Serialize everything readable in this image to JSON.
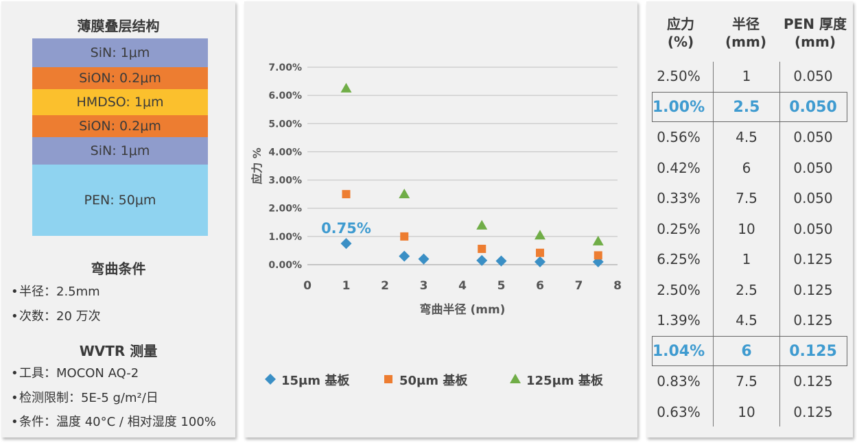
{
  "left": {
    "stack_title": "薄膜叠层结构",
    "layers": [
      {
        "label": "SiN: 1μm",
        "color": "#8f9ccc"
      },
      {
        "label": "SiON: 0.2μm",
        "color": "#ed7d31"
      },
      {
        "label": "HMDSO: 1μm",
        "color": "#fbc02d"
      },
      {
        "label": "SiON: 0.2μm",
        "color": "#ed7d31"
      },
      {
        "label": "SiN: 1μm",
        "color": "#8f9ccc"
      },
      {
        "label": "PEN: 50μm",
        "color": "#8fd3f0"
      }
    ],
    "bend_title": "弯曲条件",
    "bend_items": [
      "半径：2.5mm",
      "次数：20 万次"
    ],
    "wvtr_title": "WVTR 测量",
    "wvtr_items": [
      "工具：MOCON AQ-2",
      "检测限制：5E-5 g/m²/日",
      "条件：温度 40°C / 相对湿度 100%"
    ]
  },
  "chart_data": {
    "type": "scatter",
    "xlabel": "弯曲半径 (mm)",
    "ylabel": "应力 %",
    "xlim": [
      0,
      8
    ],
    "ylim": [
      0,
      7
    ],
    "x_ticks": [
      "0",
      "1",
      "2",
      "3",
      "4",
      "5",
      "6",
      "7",
      "8"
    ],
    "y_ticks": [
      "0.00%",
      "1.00%",
      "2.00%",
      "3.00%",
      "4.00%",
      "5.00%",
      "6.00%",
      "7.00%"
    ],
    "grid": "horizontal",
    "legend_position": "bottom",
    "annotation": {
      "text": "0.75%",
      "x": 1,
      "y": 0.75,
      "color": "#3f9bd0"
    },
    "series": [
      {
        "name": "15μm 基板",
        "marker": "diamond",
        "color": "#3a8fc5",
        "points": [
          [
            1,
            0.75
          ],
          [
            2.5,
            0.3
          ],
          [
            3,
            0.2
          ],
          [
            4.5,
            0.15
          ],
          [
            5,
            0.13
          ],
          [
            6,
            0.1
          ],
          [
            7.5,
            0.1
          ]
        ]
      },
      {
        "name": "50μm 基板",
        "marker": "square",
        "color": "#ed7d31",
        "points": [
          [
            1,
            2.5
          ],
          [
            2.5,
            1.0
          ],
          [
            4.5,
            0.56
          ],
          [
            6,
            0.42
          ],
          [
            7.5,
            0.33
          ]
        ]
      },
      {
        "name": "125μm 基板",
        "marker": "triangle",
        "color": "#70ad47",
        "points": [
          [
            1,
            6.25
          ],
          [
            2.5,
            2.5
          ],
          [
            4.5,
            1.39
          ],
          [
            6,
            1.04
          ],
          [
            7.5,
            0.83
          ]
        ]
      }
    ]
  },
  "table": {
    "headers": [
      [
        "应力",
        "(%)"
      ],
      [
        "半径",
        "(mm)"
      ],
      [
        "PEN 厚度",
        "(mm)"
      ]
    ],
    "rows": [
      [
        "2.50%",
        "1",
        "0.050"
      ],
      [
        "1.00%",
        "2.5",
        "0.050"
      ],
      [
        "0.56%",
        "4.5",
        "0.050"
      ],
      [
        "0.42%",
        "6",
        "0.050"
      ],
      [
        "0.33%",
        "7.5",
        "0.050"
      ],
      [
        "0.25%",
        "10",
        "0.050"
      ],
      [
        "6.25%",
        "1",
        "0.125"
      ],
      [
        "2.50%",
        "2.5",
        "0.125"
      ],
      [
        "1.39%",
        "4.5",
        "0.125"
      ],
      [
        "1.04%",
        "6",
        "0.125"
      ],
      [
        "0.83%",
        "7.5",
        "0.125"
      ],
      [
        "0.63%",
        "10",
        "0.125"
      ]
    ],
    "highlighted_rows": [
      1,
      9
    ],
    "highlight_color": "#3f9bd0"
  }
}
